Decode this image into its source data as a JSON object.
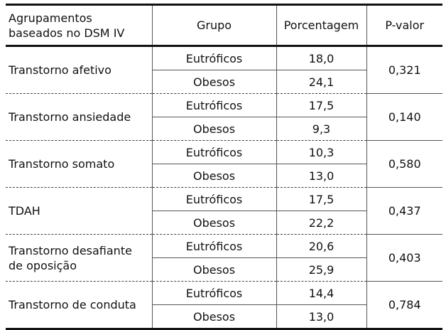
{
  "headers": {
    "col1": "Agrupamentos baseados no DSM IV",
    "col2": "Grupo",
    "col3": "Porcentagem",
    "col4": "P-valor"
  },
  "rows": [
    {
      "label": "Transtorno afetivo",
      "sub": [
        {
          "grupo": "Eutróficos",
          "pct": "18,0"
        },
        {
          "grupo": "Obesos",
          "pct": "24,1"
        }
      ],
      "pvalor": "0,321"
    },
    {
      "label": "Transtorno ansiedade",
      "sub": [
        {
          "grupo": "Eutróficos",
          "pct": "17,5"
        },
        {
          "grupo": "Obesos",
          "pct": "9,3"
        }
      ],
      "pvalor": "0,140"
    },
    {
      "label": "Transtorno somato",
      "sub": [
        {
          "grupo": "Eutróficos",
          "pct": "10,3"
        },
        {
          "grupo": "Obesos",
          "pct": "13,0"
        }
      ],
      "pvalor": "0,580"
    },
    {
      "label": "TDAH",
      "sub": [
        {
          "grupo": "Eutróficos",
          "pct": "17,5"
        },
        {
          "grupo": "Obesos",
          "pct": "22,2"
        }
      ],
      "pvalor": "0,437"
    },
    {
      "label": "Transtorno desafiante de oposição",
      "sub": [
        {
          "grupo": "Eutróficos",
          "pct": "20,6"
        },
        {
          "grupo": "Obesos",
          "pct": "25,9"
        }
      ],
      "pvalor": "0,403"
    },
    {
      "label": "Transtorno de conduta",
      "sub": [
        {
          "grupo": "Eutróficos",
          "pct": "14,4"
        },
        {
          "grupo": "Obesos",
          "pct": "13,0"
        }
      ],
      "pvalor": "0,784"
    }
  ]
}
